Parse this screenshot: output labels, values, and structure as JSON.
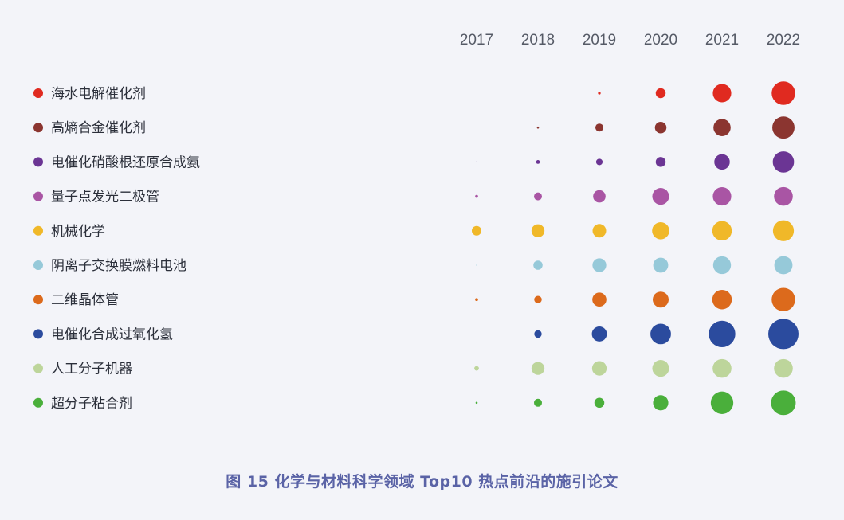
{
  "caption": "图 15  化学与材料科学领域 Top10 热点前沿的施引论文",
  "chart_data": {
    "type": "bubble",
    "x_label": "",
    "years": [
      "2017",
      "2018",
      "2019",
      "2020",
      "2021",
      "2022"
    ],
    "size_note": "bubble area proportional to relative number of citing papers (values estimated from bubble sizes, 0-100 scale)",
    "series": [
      {
        "name": "海水电解催化剂",
        "color": "#e02a20",
        "values": [
          0,
          0,
          1,
          14,
          48,
          78
        ]
      },
      {
        "name": "高熵合金催化剂",
        "color": "#8b3530",
        "values": [
          0,
          0.6,
          9,
          19,
          42,
          70
        ]
      },
      {
        "name": "电催化硝酸根还原合成氨",
        "color": "#6b3594",
        "values": [
          0.1,
          2,
          6,
          14,
          34,
          64
        ]
      },
      {
        "name": "量子点发光二极管",
        "color": "#a955a4",
        "values": [
          1.2,
          9,
          22,
          40,
          48,
          50
        ]
      },
      {
        "name": "机械化学",
        "color": "#f0b829",
        "values": [
          13,
          24,
          26,
          42,
          54,
          62
        ]
      },
      {
        "name": "阴离子交换膜燃料电池",
        "color": "#96c9d9",
        "values": [
          0.1,
          12,
          27,
          32,
          45,
          47
        ]
      },
      {
        "name": "二维晶体管",
        "color": "#dc6a1c",
        "values": [
          1.2,
          8,
          28,
          36,
          54,
          78
        ]
      },
      {
        "name": "电催化合成过氧化氢",
        "color": "#2b4b9e",
        "values": [
          0,
          8,
          32,
          60,
          100,
          130
        ]
      },
      {
        "name": "人工分子机器",
        "color": "#bdd59b",
        "values": [
          3,
          24,
          30,
          40,
          50,
          50
        ]
      },
      {
        "name": "超分子粘合剂",
        "color": "#4aaf3b",
        "values": [
          0.6,
          9,
          14,
          33,
          72,
          86
        ]
      }
    ]
  }
}
